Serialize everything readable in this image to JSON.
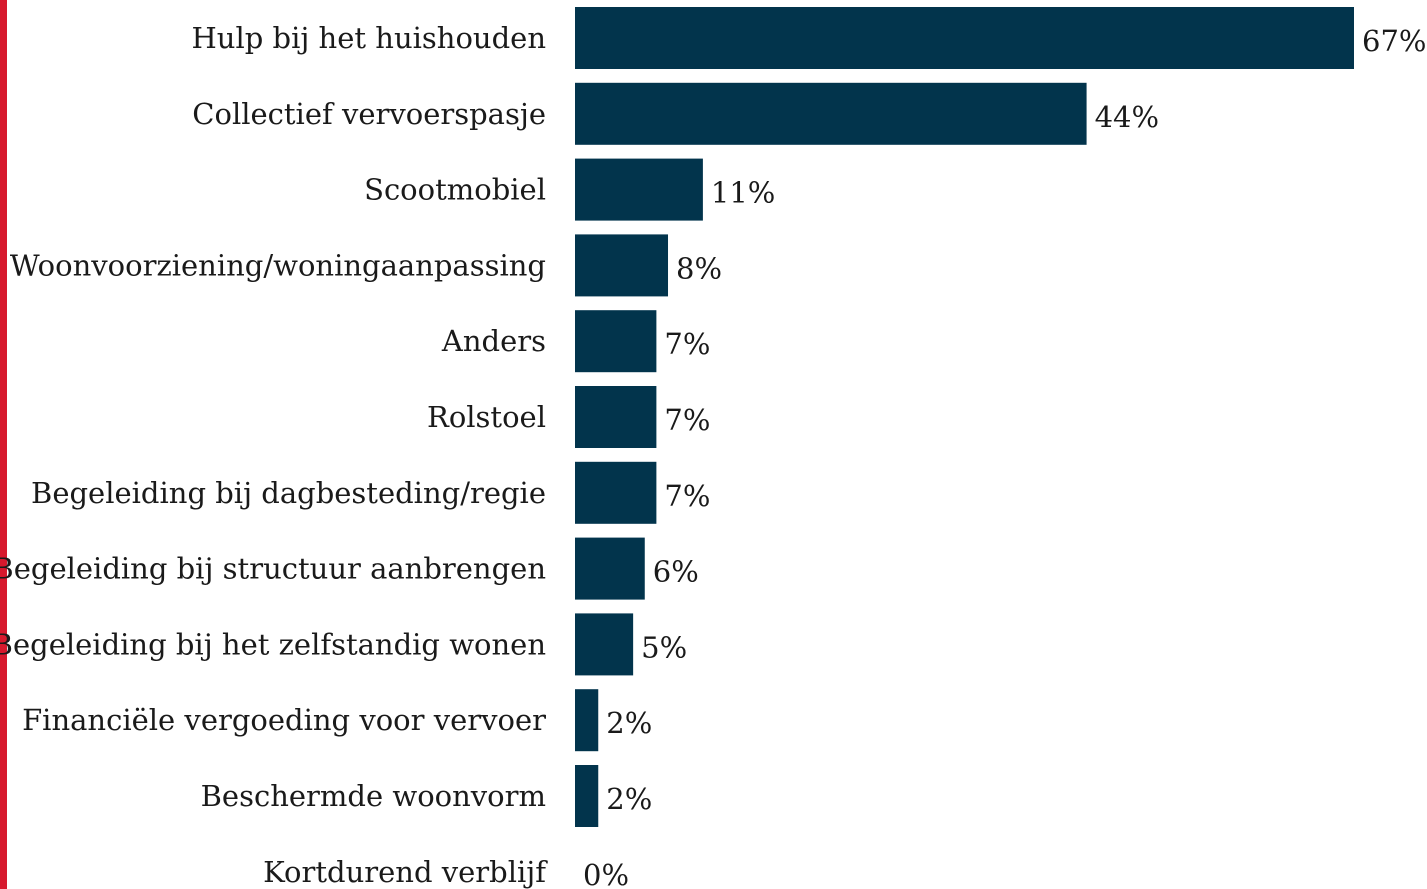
{
  "accent_color": "#d7192d",
  "chart_data": {
    "type": "bar",
    "orientation": "horizontal",
    "bar_color": "#02344c",
    "categories": [
      "Hulp bij het huishouden",
      "Collectief vervoerspasje",
      "Scootmobiel",
      "Woonvoorziening/woningaanpassing",
      "Anders",
      "Rolstoel",
      "Begeleiding bij dagbesteding/regie",
      "Begeleiding bij structuur aanbrengen",
      "Begeleiding bij het zelfstandig wonen",
      "Financiële vergoeding voor vervoer",
      "Beschermde woonvorm",
      "Kortdurend verblijf"
    ],
    "values": [
      67,
      44,
      11,
      8,
      7,
      7,
      7,
      6,
      5,
      2,
      2,
      0
    ],
    "value_labels": [
      "67%",
      "44%",
      "11%",
      "8%",
      "7%",
      "7%",
      "7%",
      "6%",
      "5%",
      "2%",
      "2%",
      "0%"
    ],
    "unit": "%",
    "title": "",
    "xlabel": "",
    "ylabel": "",
    "xlim": [
      0,
      67
    ],
    "grid": false,
    "legend": "none"
  }
}
